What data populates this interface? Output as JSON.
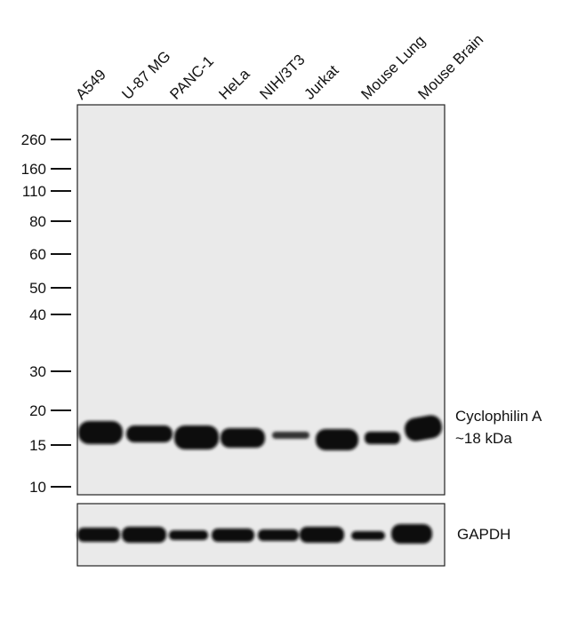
{
  "lanes": [
    "A549",
    "U-87 MG",
    "PANC-1",
    "HeLa",
    "NIH/3T3",
    "Jurkat",
    "Mouse Lung",
    "Mouse Brain"
  ],
  "markers": [
    "260",
    "160",
    "110",
    "80",
    "60",
    "50",
    "40",
    "30",
    "20",
    "15",
    "10"
  ],
  "band_labels": {
    "target": "Cyclophilin A",
    "size": "~18 kDa",
    "control": "GAPDH"
  }
}
